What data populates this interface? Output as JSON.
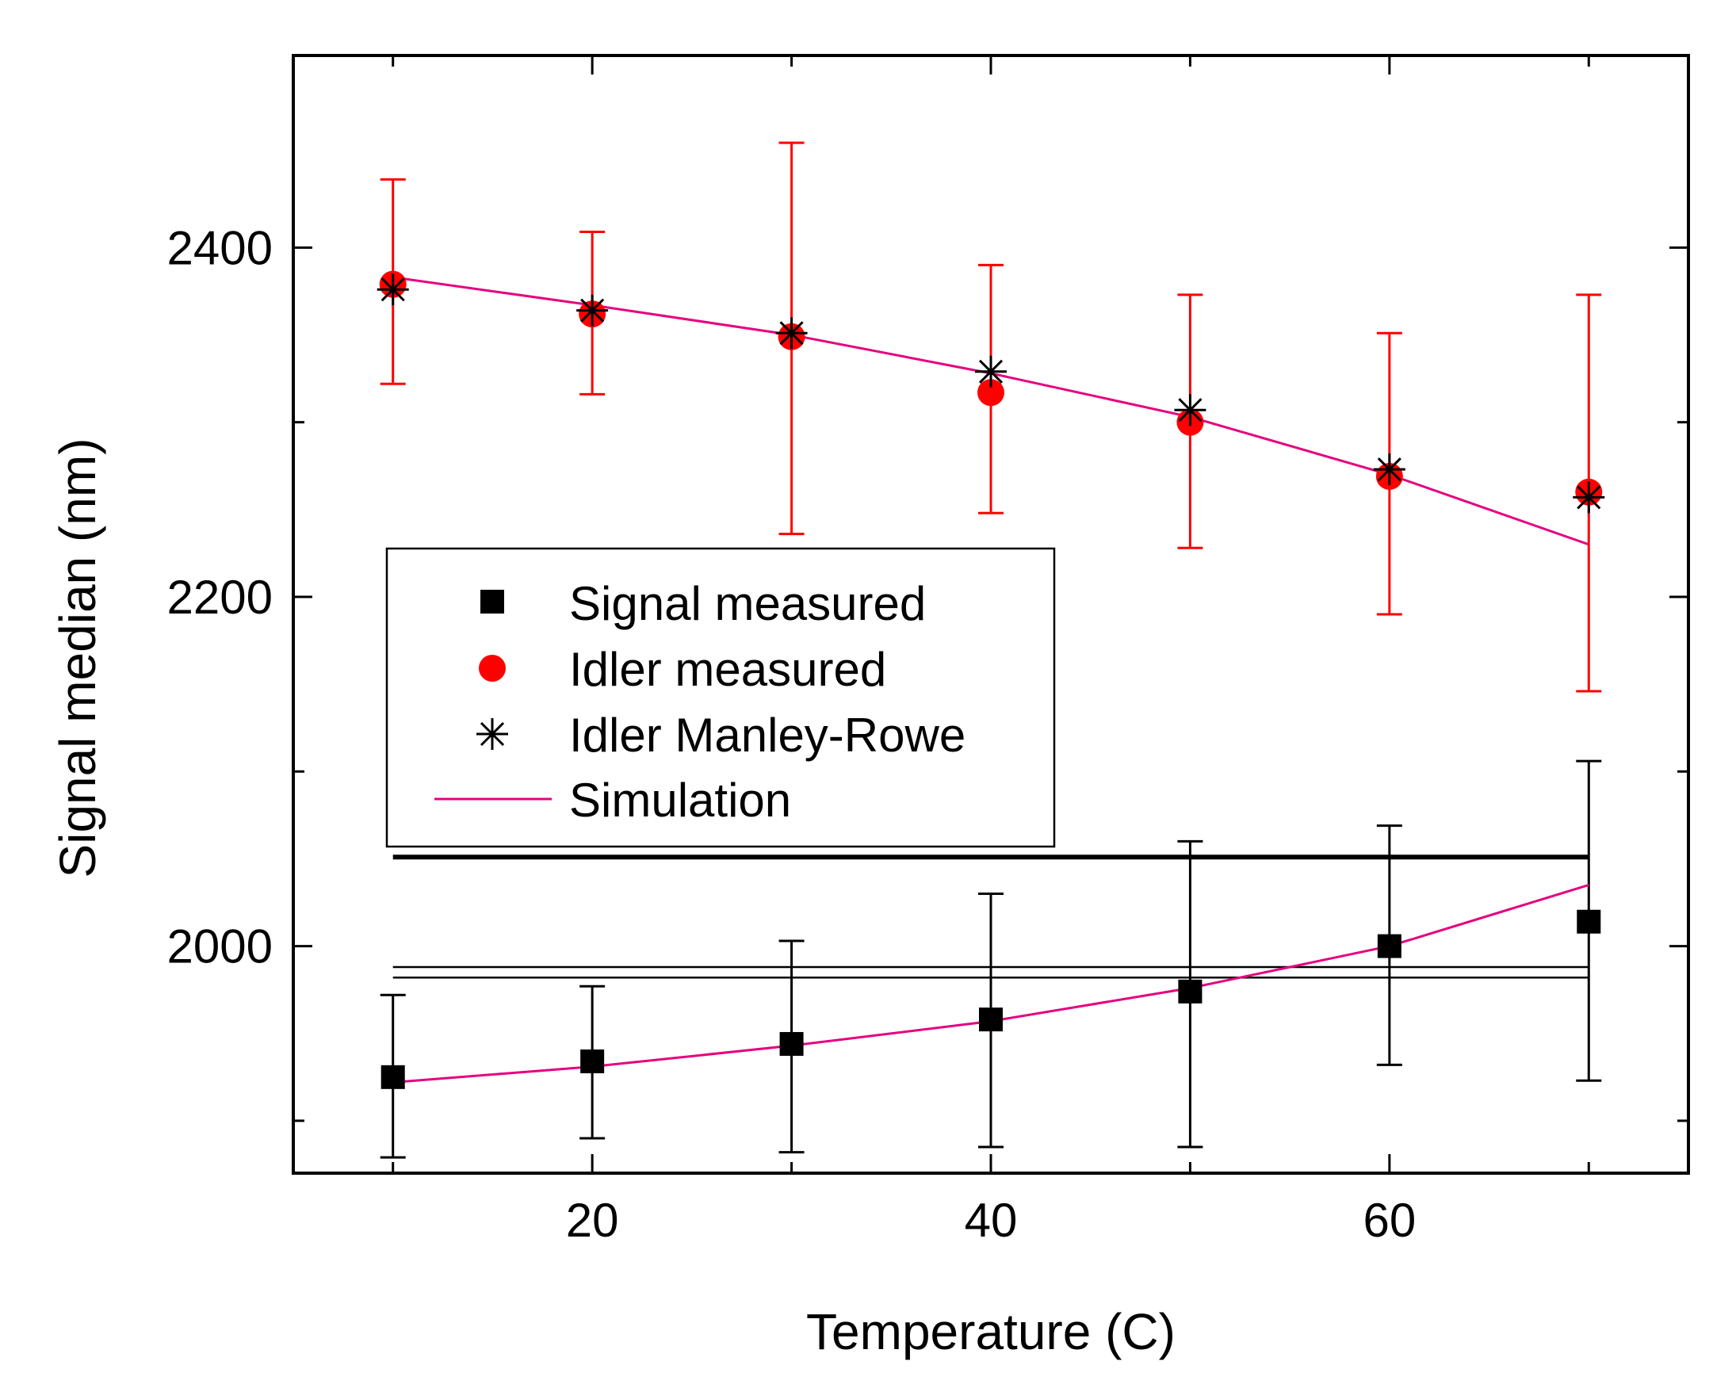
{
  "chart_data": {
    "type": "scatter",
    "title": "",
    "xlabel": "Temperature (C)",
    "ylabel": "Signal median (nm)",
    "xlim": [
      5,
      75
    ],
    "ylim": [
      1870,
      2510
    ],
    "xticks": [
      20,
      40,
      60
    ],
    "yticks": [
      2000,
      2200,
      2400
    ],
    "x_minor_ticks": [
      10,
      30,
      50,
      70
    ],
    "y_minor_ticks": [
      1900,
      2100,
      2300
    ],
    "x_tick_labels": [
      "20",
      "40",
      "60"
    ],
    "y_tick_labels": [
      "2000",
      "2200",
      "2400"
    ],
    "grid": false,
    "legend_position": "middle-left",
    "colors": {
      "signal": "#000000",
      "idler": "#ff0000",
      "simulation": "#e6007e"
    },
    "series": [
      {
        "name": "Signal measured",
        "marker": "square",
        "x": [
          10,
          20,
          30,
          40,
          50,
          60,
          70
        ],
        "y": [
          1925,
          1934,
          1944,
          1958,
          1974,
          2000,
          2014
        ],
        "err_low": [
          1879,
          1890,
          1882,
          1885,
          1885,
          1932,
          1923
        ],
        "err_high": [
          1972,
          1977,
          2003,
          2030,
          2060,
          2069,
          2106
        ]
      },
      {
        "name": "Idler measured",
        "marker": "circle",
        "x": [
          10,
          20,
          30,
          40,
          50,
          60,
          70
        ],
        "y": [
          2379,
          2362,
          2349,
          2317,
          2300,
          2269,
          2260
        ],
        "err_low": [
          2322,
          2316,
          2236,
          2248,
          2228,
          2190,
          2146
        ],
        "err_high": [
          2439,
          2409,
          2460,
          2390,
          2373,
          2351,
          2373
        ]
      },
      {
        "name": "Idler Manley-Rowe",
        "marker": "asterisk",
        "x": [
          10,
          20,
          30,
          40,
          50,
          60,
          70
        ],
        "y": [
          2376,
          2364,
          2351,
          2329,
          2307,
          2273,
          2257
        ]
      },
      {
        "name": "Simulation",
        "marker": "line",
        "x": [
          10,
          20,
          30,
          40,
          50,
          60,
          70
        ],
        "y_idler": [
          2383,
          2367,
          2350,
          2328,
          2303,
          2270,
          2230
        ],
        "y_signal": [
          1922,
          1931,
          1943,
          1957,
          1976,
          2000,
          2035
        ]
      }
    ],
    "reference_lines": [
      {
        "y": 2051,
        "x_range": [
          10,
          70
        ],
        "weight": "thick"
      },
      {
        "y": 1988,
        "x_range": [
          10,
          70
        ],
        "weight": "thin"
      },
      {
        "y": 1982,
        "x_range": [
          10,
          70
        ],
        "weight": "thin"
      }
    ]
  }
}
